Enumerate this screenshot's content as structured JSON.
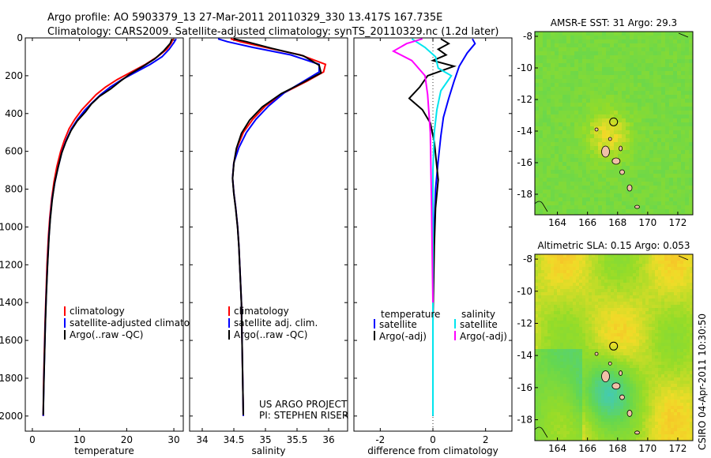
{
  "header": {
    "line1": "Argo profile: AO 5903379_13 27-Mar-2011 20110329_330 13.417S 167.735E",
    "line2": "Climatology: CARS2009. Satellite-adjusted climatology: synTS_20110329.nc (1.2d later)"
  },
  "side_credit": "CSIRO 04-Apr-2011 10:30:50",
  "colors": {
    "climatology": "#ff0000",
    "satellite": "#0000ff",
    "argo": "#000000",
    "salinity_sat": "#00e5ee",
    "salinity_argo": "#ff00ff",
    "land": "#f0c0a8"
  },
  "chart_data": [
    {
      "type": "line",
      "xlabel": "temperature",
      "ylabel": "",
      "xlim": [
        -1.5,
        32
      ],
      "ylim": [
        0,
        2080
      ],
      "y_inverted": true,
      "xticks": [
        0,
        10,
        20,
        30
      ],
      "yticks": [
        0,
        200,
        400,
        600,
        800,
        1000,
        1200,
        1400,
        1600,
        1800,
        2000
      ],
      "legend": [
        "climatology",
        "satellite-adjusted climatology",
        "Argo(..raw -QC)"
      ],
      "legend_position": "lower-center",
      "series": [
        {
          "name": "climatology",
          "color": "#ff0000",
          "x": [
            29.8,
            29.5,
            28.5,
            26.5,
            24,
            21,
            18,
            15.5,
            13.5,
            12,
            10.5,
            9,
            7.8,
            6.8,
            6,
            5.2,
            4.6,
            4.1,
            3.7,
            3.4,
            3.1,
            2.9,
            2.7,
            2.55,
            2.4,
            2.3
          ],
          "y": [
            5,
            25,
            60,
            100,
            140,
            180,
            220,
            260,
            300,
            340,
            380,
            430,
            480,
            540,
            600,
            680,
            760,
            850,
            950,
            1050,
            1200,
            1350,
            1500,
            1650,
            1800,
            2000
          ]
        },
        {
          "name": "satellite-adjusted climatology",
          "color": "#0000ff",
          "x": [
            30.5,
            30,
            29,
            27.5,
            25,
            22,
            19,
            16.5,
            14.5,
            12.8,
            11.2,
            9.6,
            8.3,
            7.2,
            6.3,
            5.5,
            4.8,
            4.2,
            3.8,
            3.5,
            3.2,
            2.95,
            2.75,
            2.6,
            2.45,
            2.3
          ],
          "y": [
            5,
            25,
            60,
            100,
            140,
            180,
            220,
            260,
            300,
            340,
            380,
            430,
            480,
            540,
            600,
            680,
            760,
            850,
            950,
            1050,
            1200,
            1350,
            1500,
            1650,
            1800,
            2000
          ]
        },
        {
          "name": "Argo(..raw -QC)",
          "color": "#000000",
          "x": [
            29.6,
            29.2,
            27.8,
            26,
            23.5,
            20.8,
            18.6,
            16.6,
            14.2,
            12.5,
            11.3,
            9.5,
            8.2,
            7.1,
            6.2,
            5.4,
            4.7,
            4.2,
            3.8,
            3.5,
            3.2,
            2.95,
            2.75,
            2.6,
            2.45,
            2.3
          ],
          "y": [
            5,
            30,
            70,
            110,
            150,
            190,
            230,
            270,
            310,
            350,
            390,
            440,
            490,
            550,
            610,
            690,
            770,
            860,
            960,
            1060,
            1210,
            1360,
            1510,
            1660,
            1810,
            1995
          ]
        }
      ]
    },
    {
      "type": "line",
      "xlabel": "salinity",
      "ylabel": "",
      "xlim": [
        33.8,
        36.3
      ],
      "ylim": [
        0,
        2080
      ],
      "y_inverted": true,
      "xticks": [
        34,
        34.5,
        35,
        35.5,
        36
      ],
      "legend": [
        "climatology",
        "satellite adj. clim.",
        "Argo(..raw -QC)"
      ],
      "legend_position": "lower-center",
      "annotation": [
        "US ARGO PROJECT",
        "PI: STEPHEN RISER"
      ],
      "series": [
        {
          "name": "climatology",
          "color": "#ff0000",
          "x": [
            34.45,
            34.6,
            35,
            35.55,
            35.95,
            35.92,
            35.65,
            35.3,
            35,
            34.8,
            34.65,
            34.55,
            34.5,
            34.48,
            34.5,
            34.53,
            34.56,
            34.58,
            34.6,
            34.62,
            34.63,
            34.64,
            34.65
          ],
          "y": [
            5,
            20,
            50,
            90,
            140,
            180,
            230,
            290,
            360,
            430,
            500,
            580,
            660,
            740,
            820,
            900,
            1000,
            1100,
            1250,
            1400,
            1600,
            1800,
            2000
          ]
        },
        {
          "name": "satellite adj. clim.",
          "color": "#0000ff",
          "x": [
            34.25,
            34.4,
            34.8,
            35.4,
            35.85,
            35.85,
            35.6,
            35.3,
            35.05,
            34.85,
            34.7,
            34.58,
            34.5,
            34.48,
            34.5,
            34.53,
            34.56,
            34.58,
            34.6,
            34.62,
            34.63,
            34.64,
            34.65
          ],
          "y": [
            5,
            20,
            50,
            90,
            140,
            180,
            230,
            290,
            360,
            430,
            500,
            580,
            660,
            740,
            820,
            900,
            1000,
            1100,
            1250,
            1400,
            1600,
            1800,
            2000
          ]
        },
        {
          "name": "Argo(..raw -QC)",
          "color": "#000000",
          "x": [
            34.5,
            34.7,
            35.1,
            35.6,
            35.85,
            35.88,
            35.6,
            35.25,
            34.95,
            34.75,
            34.62,
            34.54,
            34.5,
            34.48,
            34.5,
            34.53,
            34.56,
            34.58,
            34.6,
            34.62,
            34.63,
            34.64,
            34.65
          ],
          "y": [
            5,
            20,
            55,
            95,
            145,
            185,
            235,
            295,
            365,
            435,
            505,
            585,
            665,
            745,
            825,
            905,
            1005,
            1105,
            1255,
            1405,
            1605,
            1805,
            1995
          ]
        }
      ]
    },
    {
      "type": "line",
      "xlabel": "difference from climatology",
      "ylabel": "",
      "xlim": [
        -3,
        3
      ],
      "ylim": [
        0,
        2080
      ],
      "y_inverted": true,
      "xticks": [
        -2,
        0,
        2
      ],
      "legend": [
        "temperature",
        "satellite",
        "Argo(-adj)",
        "salinity",
        "satellite",
        "Argo(-adj)"
      ],
      "legend_position": "lower-center",
      "series": [
        {
          "name": "temperature satellite",
          "color": "#0000ff",
          "x": [
            1.5,
            1.6,
            1.3,
            1.0,
            0.8,
            0.6,
            0.4,
            0.3,
            0.2,
            0.1,
            0.05,
            0.0,
            0.0,
            0.0,
            0.0
          ],
          "y": [
            5,
            30,
            80,
            150,
            230,
            320,
            420,
            520,
            650,
            800,
            1000,
            1200,
            1500,
            1800,
            2000
          ]
        },
        {
          "name": "temperature Argo(-adj)",
          "color": "#000000",
          "x": [
            0.3,
            0.6,
            0.2,
            0.5,
            0.0,
            0.8,
            -0.2,
            -0.5,
            -0.9,
            -0.4,
            -0.1,
            0.05,
            0.2,
            0.1,
            0.05,
            0.0,
            0.0
          ],
          "y": [
            5,
            30,
            60,
            90,
            120,
            150,
            200,
            260,
            320,
            380,
            450,
            550,
            750,
            900,
            1100,
            1500,
            2000
          ]
        },
        {
          "name": "salinity satellite",
          "color": "#00e5ee",
          "x": [
            -0.8,
            -0.3,
            0.1,
            0.2,
            0.7,
            0.3,
            0.15,
            0.05,
            0.0,
            0.0,
            0.0
          ],
          "y": [
            5,
            50,
            100,
            160,
            200,
            280,
            380,
            500,
            700,
            1200,
            2000
          ]
        },
        {
          "name": "salinity Argo(-adj)",
          "color": "#ff00ff",
          "x": [
            -0.4,
            -1.0,
            -1.5,
            -0.8,
            -0.3,
            -0.2,
            -0.1,
            -0.05,
            0.0
          ],
          "y": [
            5,
            30,
            70,
            120,
            200,
            300,
            500,
            900,
            1400
          ]
        }
      ]
    },
    {
      "type": "heatmap",
      "title": "AMSR-E SST: 31 Argo: 29.3",
      "xlim": [
        162.5,
        173
      ],
      "ylim": [
        -19.3,
        -7.7
      ],
      "xticks": [
        164,
        166,
        168,
        170,
        172
      ],
      "yticks": [
        -8,
        -10,
        -12,
        -14,
        -16,
        -18
      ],
      "marker": {
        "lon": 167.735,
        "lat": -13.417
      }
    },
    {
      "type": "heatmap",
      "title": "Altimetric SLA: 0.15 Argo: 0.053",
      "xlim": [
        162.5,
        173
      ],
      "ylim": [
        -19.3,
        -7.7
      ],
      "xticks": [
        164,
        166,
        168,
        170,
        172
      ],
      "yticks": [
        -8,
        -10,
        -12,
        -14,
        -16,
        -18
      ],
      "marker": {
        "lon": 167.735,
        "lat": -13.417
      }
    }
  ]
}
